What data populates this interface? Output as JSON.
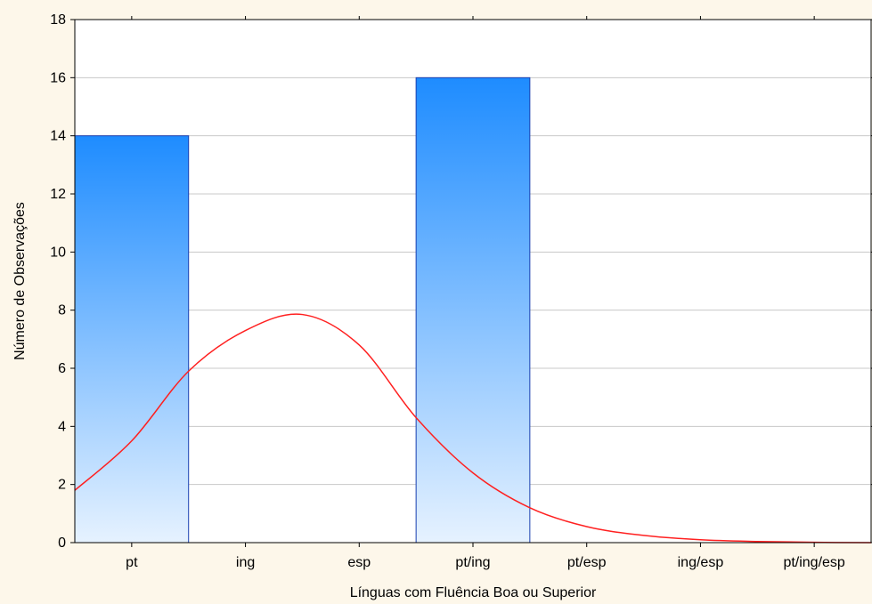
{
  "chart_data": {
    "type": "bar",
    "title": "",
    "xlabel": "Línguas com Fluência Boa ou Superior",
    "ylabel": "Número de Observações",
    "categories": [
      "pt",
      "ing",
      "esp",
      "pt/ing",
      "pt/esp",
      "ing/esp",
      "pt/ing/esp"
    ],
    "values": [
      14,
      0,
      0,
      16,
      0,
      0,
      0
    ],
    "ylim": [
      0,
      18
    ],
    "yticks": [
      0,
      2,
      4,
      6,
      8,
      10,
      12,
      14,
      16,
      18
    ],
    "grid": true,
    "fitted_curve": {
      "type": "normal",
      "color": "#ff2020",
      "x": [
        -0.5,
        0.0,
        0.5,
        1.0,
        1.5,
        2.0,
        2.5,
        3.0,
        3.5,
        4.0,
        4.5,
        5.0,
        5.5,
        6.0,
        6.5
      ],
      "y": [
        1.8,
        3.5,
        5.9,
        7.3,
        7.85,
        6.8,
        4.3,
        2.4,
        1.2,
        0.55,
        0.25,
        0.1,
        0.04,
        0.01,
        0.0
      ]
    },
    "colors": {
      "bar_top": "#1e8cff",
      "bar_bottom": "#e6f2ff",
      "bar_stroke": "#1a3fb0",
      "grid": "#c8c8c8",
      "plot_bg": "#ffffff",
      "page_bg": "#fdf7ea"
    }
  }
}
